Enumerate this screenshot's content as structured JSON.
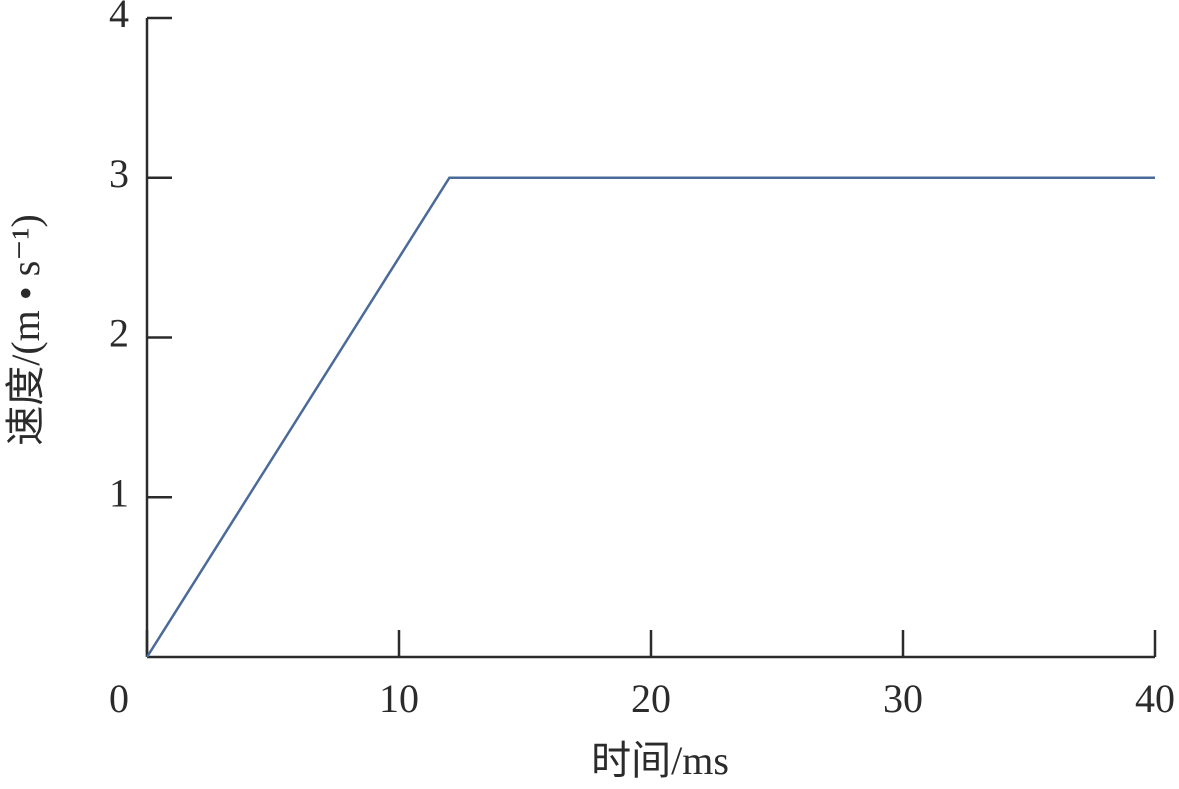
{
  "chart_data": {
    "type": "line",
    "x_label": "时间/ms",
    "y_label": "速度/(m • s⁻¹)",
    "x": [
      0,
      12,
      40
    ],
    "series": [
      {
        "color": "#4a6a9a",
        "values": [
          0,
          3,
          3
        ]
      }
    ],
    "xlim": [
      0,
      40
    ],
    "xticks": [
      0,
      10,
      20,
      30,
      40
    ],
    "ylim": [
      0,
      4
    ],
    "yticks": [
      1,
      2,
      3,
      4
    ]
  }
}
